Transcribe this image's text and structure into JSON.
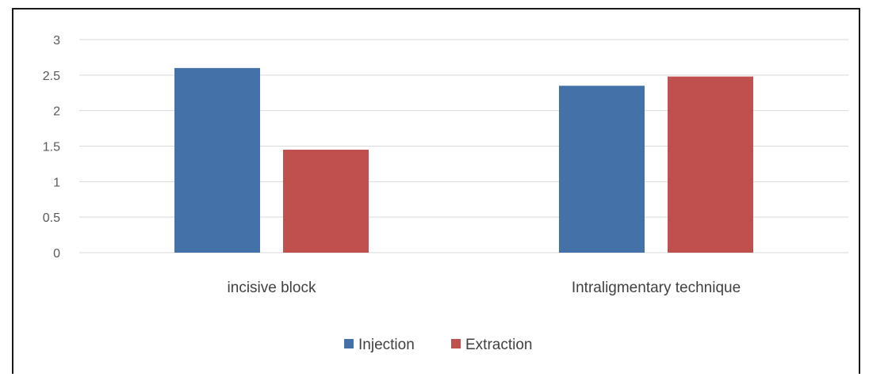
{
  "chart_data": {
    "type": "bar",
    "categories": [
      "incisive block",
      "Intraligmentary technique"
    ],
    "series": [
      {
        "name": "Injection",
        "values": [
          2.6,
          2.35
        ],
        "color": "#4472a8"
      },
      {
        "name": "Extraction",
        "values": [
          1.45,
          2.48
        ],
        "color": "#c0504d"
      }
    ],
    "ylim": [
      0,
      3
    ],
    "yticks": [
      "0",
      "0.5",
      "1",
      "1.5",
      "2",
      "2.5",
      "3"
    ],
    "grid": true,
    "legend_position": "bottom-center",
    "gridline_color": "#d9d9d9"
  }
}
